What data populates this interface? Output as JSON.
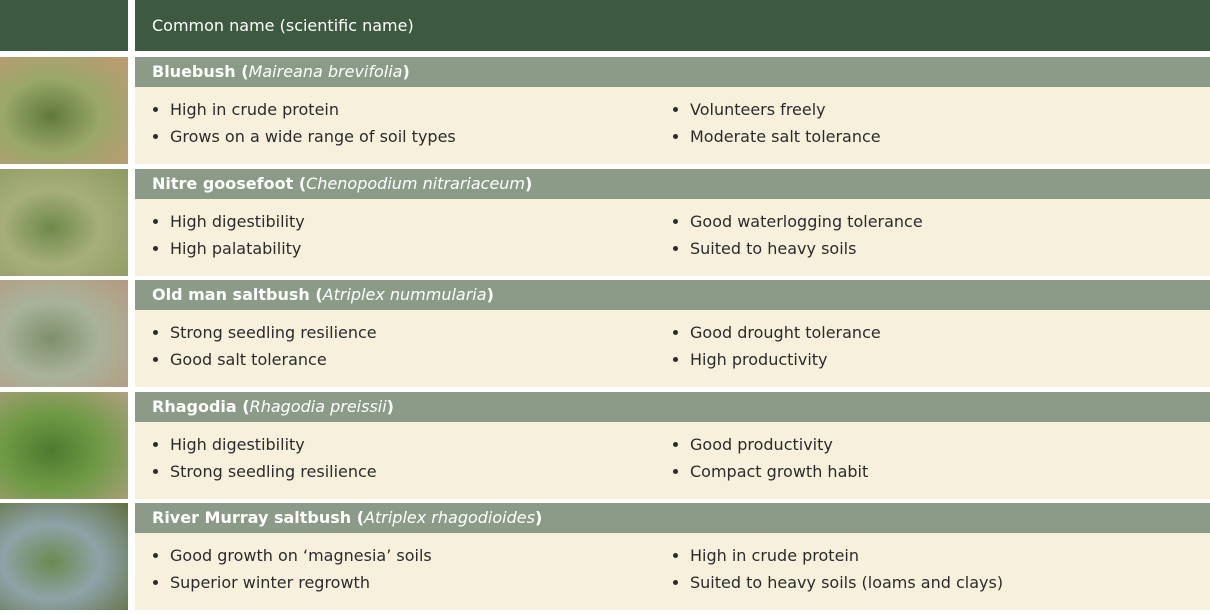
{
  "header": {
    "title": "Common name (scientific name)"
  },
  "rows": [
    {
      "name": [
        "Bluebush (",
        "Maireana brevifolia",
        ")"
      ],
      "left": [
        "High in crude protein",
        "Grows on a wide range of soil types"
      ],
      "right": [
        "Volunteers freely",
        "Moderate salt tolerance"
      ]
    },
    {
      "name": [
        "Nitre goosefoot (",
        "Chenopodium nitrariaceum",
        ")"
      ],
      "left": [
        "High digestibility",
        "High palatability"
      ],
      "right": [
        "Good waterlogging tolerance",
        "Suited to heavy soils"
      ]
    },
    {
      "name": [
        "Old man saltbush (",
        "Atriplex nummularia",
        ")"
      ],
      "left": [
        "Strong seedling resilience",
        "Good salt tolerance"
      ],
      "right": [
        "Good drought tolerance",
        "High productivity"
      ]
    },
    {
      "name": [
        "Rhagodia (",
        "Rhagodia preissii",
        ")"
      ],
      "left": [
        "High digestibility",
        "Strong seedling resilience"
      ],
      "right": [
        "Good productivity",
        "Compact growth habit"
      ]
    },
    {
      "name": [
        "River Murray saltbush (",
        "Atriplex rhagodioides",
        ")"
      ],
      "left": [
        "Good growth on ‘magnesia’ soils",
        "Superior winter regrowth"
      ],
      "right": [
        "High in crude protein",
        "Suited to heavy soils (loams and clays)"
      ]
    }
  ]
}
